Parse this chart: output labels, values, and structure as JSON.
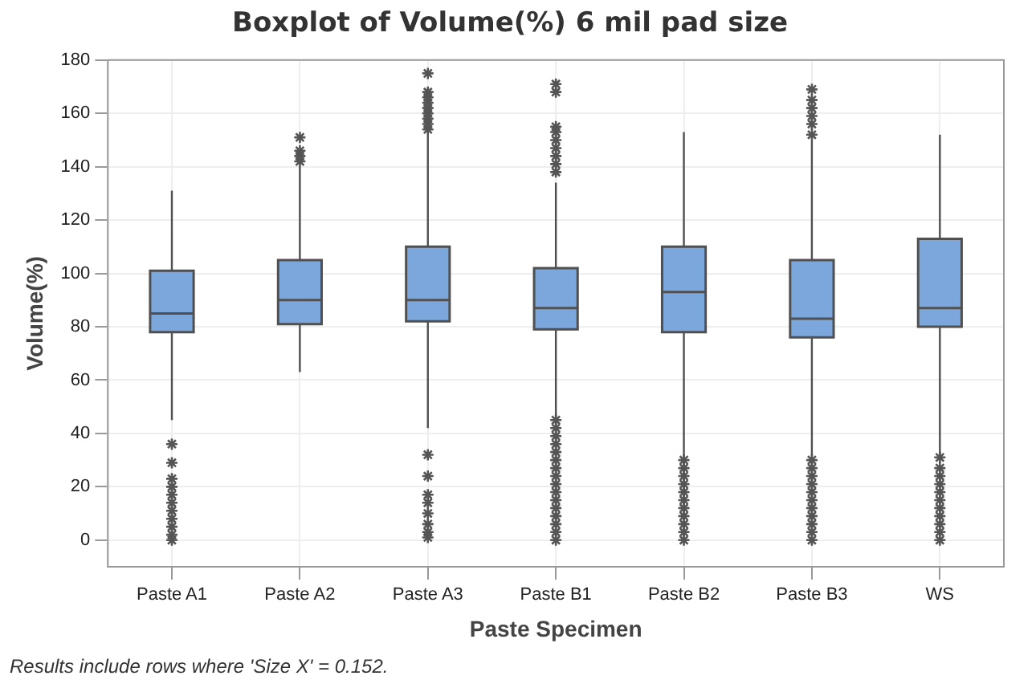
{
  "chart_data": {
    "type": "box",
    "title": "Boxplot of Volume(%) 6 mil pad size",
    "xlabel": "Paste Specimen",
    "ylabel": "Volume(%)",
    "categories": [
      "Paste A1",
      "Paste A2",
      "Paste A3",
      "Paste B1",
      "Paste B2",
      "Paste B3",
      "WS"
    ],
    "color": "#7ba7dc",
    "marker": "star",
    "grid": true,
    "ylim": [
      -10,
      180
    ],
    "yticks": [
      0,
      20,
      40,
      60,
      80,
      100,
      120,
      140,
      160,
      180
    ],
    "boxes": [
      {
        "low": 45,
        "q1": 78,
        "median": 85,
        "q3": 101,
        "high": 131,
        "outliers": [
          0,
          2,
          5,
          8,
          11,
          14,
          17,
          20,
          23,
          29,
          36
        ]
      },
      {
        "low": 63,
        "q1": 81,
        "median": 90,
        "q3": 105,
        "high": 140,
        "outliers": [
          142,
          144,
          146,
          151
        ]
      },
      {
        "low": 42,
        "q1": 82,
        "median": 90,
        "q3": 110,
        "high": 152,
        "outliers": [
          1,
          3,
          6,
          10,
          14,
          17,
          24,
          32,
          154,
          156,
          158,
          160,
          162,
          164,
          166,
          168,
          175
        ]
      },
      {
        "low": 46,
        "q1": 79,
        "median": 87,
        "q3": 102,
        "high": 134,
        "outliers": [
          0,
          3,
          6,
          9,
          12,
          15,
          18,
          21,
          24,
          27,
          30,
          33,
          36,
          39,
          42,
          45,
          138,
          141,
          144,
          147,
          150,
          153,
          155,
          168,
          171
        ]
      },
      {
        "low": 31,
        "q1": 78,
        "median": 93,
        "q3": 110,
        "high": 153,
        "outliers": [
          0,
          3,
          6,
          9,
          12,
          15,
          18,
          21,
          24,
          27,
          30
        ]
      },
      {
        "low": 31,
        "q1": 76,
        "median": 83,
        "q3": 105,
        "high": 150,
        "outliers": [
          0,
          3,
          6,
          9,
          12,
          15,
          18,
          21,
          24,
          27,
          30,
          152,
          156,
          159,
          162,
          165,
          169
        ]
      },
      {
        "low": 32,
        "q1": 80,
        "median": 87,
        "q3": 113,
        "high": 152,
        "outliers": [
          0,
          3,
          6,
          9,
          12,
          15,
          18,
          21,
          24,
          27,
          31
        ]
      }
    ],
    "annotations": [
      "Results include rows where  'Size X'  = 0.152."
    ]
  }
}
